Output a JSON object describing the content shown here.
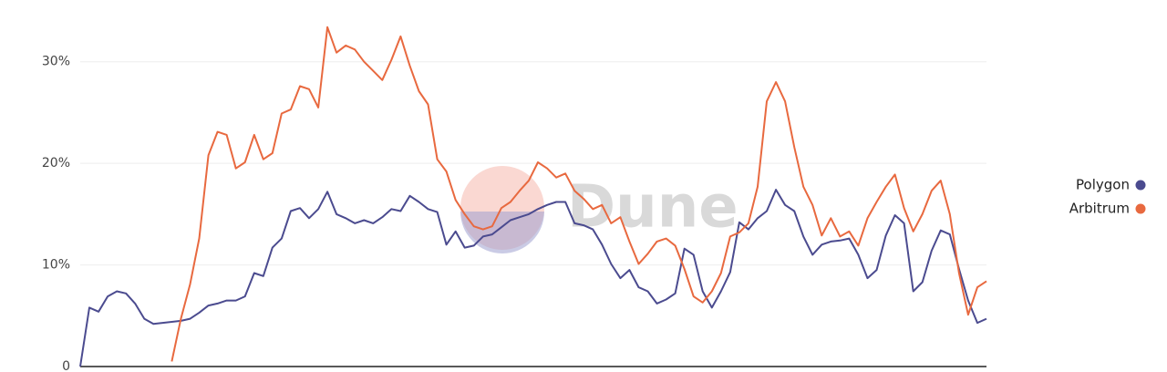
{
  "chart_data": {
    "type": "line",
    "watermark": "Dune",
    "ylim": [
      0,
      35
    ],
    "yticks": [
      0,
      {
        "value": 10,
        "label": "10%"
      },
      {
        "value": 20,
        "label": "20%"
      },
      {
        "value": 30,
        "label": "30%"
      }
    ],
    "grid": true,
    "legend": "right",
    "series": [
      {
        "name": "Polygon",
        "color": "#4b4b8f",
        "values": [
          0,
          5.8,
          5.4,
          6.9,
          7.4,
          7.2,
          6.2,
          4.7,
          4.2,
          4.3,
          4.4,
          4.5,
          4.7,
          5.3,
          6.0,
          6.2,
          6.5,
          6.5,
          6.9,
          9.2,
          8.9,
          11.7,
          12.6,
          15.3,
          15.6,
          14.6,
          15.5,
          17.2,
          15.0,
          14.6,
          14.1,
          14.4,
          14.1,
          14.7,
          15.5,
          15.3,
          16.8,
          16.2,
          15.5,
          15.2,
          12.0,
          13.3,
          11.7,
          11.9,
          12.8,
          13.0,
          13.7,
          14.4,
          14.7,
          15.0,
          15.5,
          15.9,
          16.2,
          16.2,
          14.1,
          13.9,
          13.5,
          12.0,
          10.1,
          8.7,
          9.5,
          7.8,
          7.4,
          6.2,
          6.6,
          7.2,
          11.6,
          11.0,
          7.4,
          5.8,
          7.4,
          9.3,
          14.2,
          13.5,
          14.6,
          15.3,
          17.4,
          15.9,
          15.3,
          12.8,
          11.0,
          12.0,
          12.3,
          12.4,
          12.6,
          11.0,
          8.7,
          9.5,
          12.9,
          14.9,
          14.1,
          7.4,
          8.3,
          11.4,
          13.4,
          13.0,
          9.6,
          6.5,
          4.3,
          4.7
        ]
      },
      {
        "name": "Arbitrum",
        "color": "#e8693f",
        "values": [
          null,
          null,
          null,
          null,
          null,
          null,
          null,
          null,
          null,
          null,
          0.5,
          4.7,
          8.1,
          12.6,
          20.8,
          23.1,
          22.8,
          19.5,
          20.1,
          22.8,
          20.4,
          21.0,
          24.9,
          25.3,
          27.6,
          27.3,
          25.5,
          33.4,
          30.9,
          31.6,
          31.2,
          30.0,
          29.1,
          28.2,
          30.2,
          32.5,
          29.6,
          27.1,
          25.8,
          20.4,
          19.2,
          16.4,
          15.0,
          13.8,
          13.5,
          13.8,
          15.6,
          16.2,
          17.3,
          18.3,
          20.1,
          19.5,
          18.6,
          19.0,
          17.3,
          16.5,
          15.5,
          15.9,
          14.1,
          14.7,
          12.3,
          10.1,
          11.1,
          12.3,
          12.6,
          11.9,
          9.6,
          6.9,
          6.3,
          7.4,
          9.2,
          12.8,
          13.2,
          14.1,
          17.7,
          26.1,
          28.0,
          26.1,
          21.6,
          17.7,
          15.9,
          12.9,
          14.6,
          12.8,
          13.3,
          11.9,
          14.6,
          16.2,
          17.7,
          18.9,
          15.6,
          13.3,
          15.0,
          17.3,
          18.3,
          15.0,
          9.2,
          5.1,
          7.8,
          8.4
        ]
      }
    ]
  }
}
